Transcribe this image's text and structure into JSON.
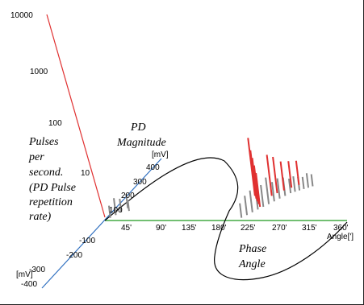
{
  "chart_data": {
    "type": "3d-bar",
    "z_axis": {
      "ticks": [
        "10000",
        "1000",
        "100",
        "10"
      ],
      "label_lines": [
        "Pulses",
        "per",
        "second.",
        "(PD Pulse",
        "repetition",
        "rate)"
      ],
      "scale": "log",
      "color": "#e03030"
    },
    "y_axis": {
      "ticks_pos": [
        "100",
        "200",
        "300",
        "400"
      ],
      "ticks_neg": [
        "-100",
        "-200",
        "-300",
        "-400"
      ],
      "unit": "[mV]",
      "unit_neg": "[mV]",
      "label_lines": [
        "PD",
        "Magnitude"
      ],
      "range": [
        -400,
        400
      ],
      "color": "#3070c0"
    },
    "x_axis": {
      "ticks": [
        "45'",
        "90'",
        "135'",
        "180'",
        "225'",
        "270'",
        "315'",
        "360'"
      ],
      "unit": "Angle[']",
      "label_lines": [
        "Phase",
        "Angle"
      ],
      "range": [
        0,
        360
      ],
      "color": "#44aa44"
    },
    "series": [
      {
        "color": "#888888",
        "points": [
          {
            "phase": 5,
            "mag": 20,
            "rate": 0.25
          },
          {
            "phase": 10,
            "mag": 40,
            "rate": 0.35
          },
          {
            "phase": 15,
            "mag": 60,
            "rate": 0.28
          },
          {
            "phase": 20,
            "mag": 90,
            "rate": 0.3
          },
          {
            "phase": 25,
            "mag": 70,
            "rate": 0.22
          },
          {
            "phase": 200,
            "mag": 20,
            "rate": 0.3
          },
          {
            "phase": 205,
            "mag": 40,
            "rate": 0.4
          },
          {
            "phase": 210,
            "mag": 60,
            "rate": 0.45
          },
          {
            "phase": 215,
            "mag": 80,
            "rate": 0.5
          },
          {
            "phase": 220,
            "mag": 100,
            "rate": 0.45
          },
          {
            "phase": 225,
            "mag": 120,
            "rate": 0.55
          },
          {
            "phase": 230,
            "mag": 140,
            "rate": 0.4
          },
          {
            "phase": 235,
            "mag": 160,
            "rate": 0.42
          },
          {
            "phase": 240,
            "mag": 180,
            "rate": 0.38
          },
          {
            "phase": 245,
            "mag": 200,
            "rate": 0.3
          },
          {
            "phase": 250,
            "mag": 210,
            "rate": 0.32
          },
          {
            "phase": 255,
            "mag": 220,
            "rate": 0.28
          },
          {
            "phase": 260,
            "mag": 230,
            "rate": 0.25
          },
          {
            "phase": 265,
            "mag": 240,
            "rate": 0.3
          },
          {
            "phase": 270,
            "mag": 250,
            "rate": 0.25
          }
        ]
      },
      {
        "color": "#e03030",
        "points": [
          {
            "phase": 195,
            "mag": 180,
            "rate": 1.2
          },
          {
            "phase": 200,
            "mag": 160,
            "rate": 1.0
          },
          {
            "phase": 205,
            "mag": 140,
            "rate": 0.9
          },
          {
            "phase": 210,
            "mag": 120,
            "rate": 0.8
          },
          {
            "phase": 215,
            "mag": 100,
            "rate": 0.7
          },
          {
            "phase": 220,
            "mag": 180,
            "rate": 0.85
          },
          {
            "phase": 225,
            "mag": 200,
            "rate": 0.75
          },
          {
            "phase": 232,
            "mag": 220,
            "rate": 0.6
          },
          {
            "phase": 240,
            "mag": 240,
            "rate": 0.55
          },
          {
            "phase": 248,
            "mag": 260,
            "rate": 0.5
          }
        ]
      }
    ],
    "envelope_color": "#000000"
  }
}
